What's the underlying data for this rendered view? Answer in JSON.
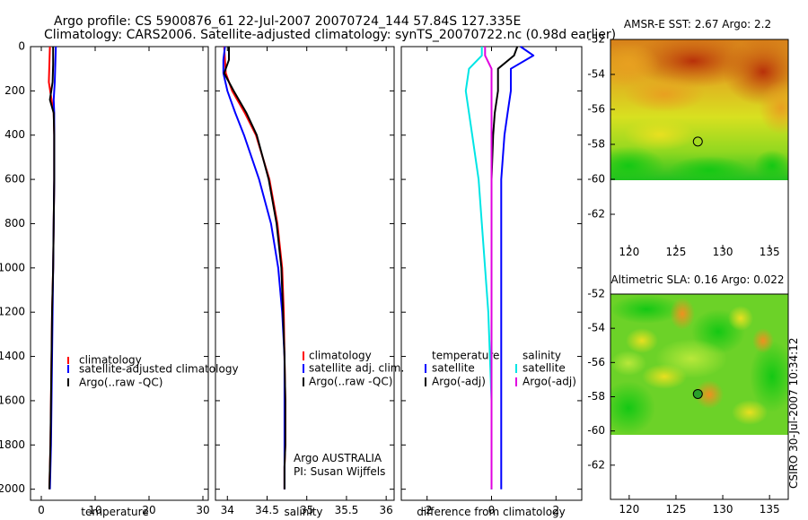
{
  "header": {
    "line1": "Argo profile: CS 5900876_61 22-Jul-2007 20070724_144 57.84S 127.335E",
    "line2": "Climatology: CARS2006. Satellite-adjusted climatology: synTS_20070722.nc (0.98d earlier)"
  },
  "footer": {
    "stamp": "CSIRO 30-Jul-2007 10:34:12"
  },
  "colors": {
    "climatology": "#ff0000",
    "satellite": "#0000ff",
    "argo": "#000000",
    "sal_satellite": "#00e5e5",
    "sal_argo": "#e000e0"
  },
  "chart_data": [
    {
      "type": "line",
      "xlabel": "temperature",
      "ylabel": "",
      "xlim": [
        -2,
        31
      ],
      "ylim": [
        2050,
        0
      ],
      "xticks": [
        "0",
        "10",
        "20",
        "30"
      ],
      "yticks": [
        "0",
        "200",
        "400",
        "600",
        "800",
        "1000",
        "1200",
        "1400",
        "1600",
        "1800",
        "2000"
      ],
      "legend": [
        "climatology",
        "satellite-adjusted climatology",
        "Argo(..raw -QC)"
      ],
      "series": [
        {
          "name": "climatology",
          "x": [
            1.6,
            1.5,
            1.4,
            1.9,
            2.3,
            2.4,
            2.4,
            2.3,
            2.2,
            2.0,
            1.9,
            1.8,
            1.7,
            1.6,
            1.5
          ],
          "y": [
            0,
            80,
            160,
            240,
            300,
            400,
            600,
            800,
            1000,
            1200,
            1400,
            1600,
            1800,
            1900,
            2000
          ]
        },
        {
          "name": "satellite-adjusted climatology",
          "x": [
            2.7,
            2.6,
            2.5,
            2.3,
            2.4,
            2.4,
            2.4,
            2.3,
            2.2,
            2.1,
            2.0,
            1.9,
            1.8,
            1.7,
            1.6
          ],
          "y": [
            0,
            80,
            160,
            240,
            300,
            400,
            600,
            800,
            1000,
            1200,
            1400,
            1600,
            1800,
            1900,
            2000
          ]
        },
        {
          "name": "Argo(..raw -QC)",
          "x": [
            2.2,
            2.2,
            2.1,
            1.6,
            2.3,
            2.4,
            2.4,
            2.3,
            2.2,
            2.0,
            1.9,
            1.8,
            1.7,
            1.6,
            1.5
          ],
          "y": [
            0,
            80,
            160,
            240,
            300,
            400,
            600,
            800,
            1000,
            1200,
            1400,
            1600,
            1800,
            1900,
            2000
          ]
        }
      ]
    },
    {
      "type": "line",
      "xlabel": "salinity",
      "xlim": [
        33.85,
        36.1
      ],
      "ylim": [
        2050,
        0
      ],
      "xticks": [
        "34",
        "34.5",
        "35",
        "35.5",
        "36"
      ],
      "legend": [
        "climatology",
        "satellite adj. clim.",
        "Argo(..raw -QC)"
      ],
      "annotation": [
        "Argo AUSTRALIA",
        "PI: Susan Wijffels"
      ],
      "series": [
        {
          "name": "climatology",
          "x": [
            33.96,
            33.97,
            33.98,
            34.06,
            34.22,
            34.36,
            34.53,
            34.63,
            34.69,
            34.71,
            34.72,
            34.73,
            34.73,
            34.72,
            34.72
          ],
          "y": [
            0,
            60,
            120,
            200,
            300,
            400,
            600,
            800,
            1000,
            1200,
            1400,
            1600,
            1800,
            1900,
            2000
          ]
        },
        {
          "name": "satellite adj. clim.",
          "x": [
            33.97,
            33.95,
            33.95,
            34.0,
            34.1,
            34.21,
            34.4,
            34.55,
            34.64,
            34.69,
            34.72,
            34.72,
            34.72,
            34.72,
            34.72
          ],
          "y": [
            0,
            60,
            120,
            200,
            300,
            400,
            600,
            800,
            1000,
            1200,
            1400,
            1600,
            1800,
            1900,
            2000
          ]
        },
        {
          "name": "Argo(..raw -QC)",
          "x": [
            34.02,
            34.02,
            33.96,
            34.08,
            34.24,
            34.37,
            34.52,
            34.62,
            34.68,
            34.7,
            34.72,
            34.73,
            34.73,
            34.72,
            34.72
          ],
          "y": [
            0,
            60,
            120,
            200,
            300,
            400,
            600,
            800,
            1000,
            1200,
            1400,
            1600,
            1800,
            1900,
            2000
          ]
        }
      ]
    },
    {
      "type": "line",
      "xlabel": "difference from climatology",
      "xlim": [
        -2.8,
        2.8
      ],
      "ylim": [
        2050,
        0
      ],
      "xticks": [
        "-2",
        "0",
        "2"
      ],
      "legend_left": {
        "heading": "temperature",
        "entries": [
          "satellite",
          "Argo(-adj)"
        ]
      },
      "legend_right": {
        "heading": "salinity",
        "entries": [
          "satellite",
          "Argo(-adj)"
        ]
      },
      "series": [
        {
          "name": "temperature satellite",
          "x": [
            0.9,
            1.3,
            0.6,
            0.6,
            0.5,
            0.4,
            0.3,
            0.3,
            0.3,
            0.3,
            0.3,
            0.3,
            0.3
          ],
          "y": [
            0,
            40,
            100,
            200,
            300,
            400,
            600,
            800,
            1000,
            1200,
            1600,
            1800,
            2000
          ]
        },
        {
          "name": "temperature Argo(-adj)",
          "x": [
            0.8,
            0.7,
            0.2,
            0.2,
            0.1,
            0.05,
            0.0,
            0.0,
            0.0,
            0.0,
            0.0,
            0.0,
            0.0
          ],
          "y": [
            0,
            40,
            100,
            200,
            300,
            400,
            600,
            800,
            1000,
            1200,
            1600,
            1800,
            2000
          ]
        },
        {
          "name": "salinity satellite",
          "x": [
            -0.3,
            -0.3,
            -0.7,
            -0.8,
            -0.7,
            -0.6,
            -0.4,
            -0.3,
            -0.2,
            -0.1,
            0.0,
            0.0,
            0.0
          ],
          "y": [
            0,
            40,
            100,
            200,
            300,
            400,
            600,
            800,
            1000,
            1200,
            1600,
            1800,
            2000
          ]
        },
        {
          "name": "salinity Argo(-adj)",
          "x": [
            -0.2,
            -0.2,
            0.0,
            0.0,
            0.0,
            0.0,
            0.0,
            0.0,
            0.0,
            0.0,
            0.0,
            0.0,
            0.0
          ],
          "y": [
            0,
            40,
            100,
            200,
            300,
            400,
            600,
            800,
            1000,
            1200,
            1600,
            1800,
            2000
          ]
        }
      ]
    },
    {
      "type": "heatmap",
      "title": "AMSR-E SST: 2.67 Argo: 2.2",
      "xlim": [
        118,
        137
      ],
      "ylim": [
        -64,
        -52
      ],
      "xticks": [
        "120",
        "125",
        "130",
        "135"
      ],
      "yticks": [
        "-52",
        "-54",
        "-56",
        "-58",
        "-60",
        "-62"
      ],
      "marker": [
        127.335,
        -57.84
      ],
      "data_extent_lat": [
        -60,
        -52
      ]
    },
    {
      "type": "heatmap",
      "title": "Altimetric SLA: 0.16 Argo: 0.022",
      "xlim": [
        118,
        137
      ],
      "ylim": [
        -64,
        -52
      ],
      "xticks": [
        "120",
        "125",
        "130",
        "135"
      ],
      "yticks": [
        "-52",
        "-54",
        "-56",
        "-58",
        "-60",
        "-62"
      ],
      "marker": [
        127.335,
        -57.84
      ],
      "data_extent_lat": [
        -60,
        -52
      ]
    }
  ]
}
